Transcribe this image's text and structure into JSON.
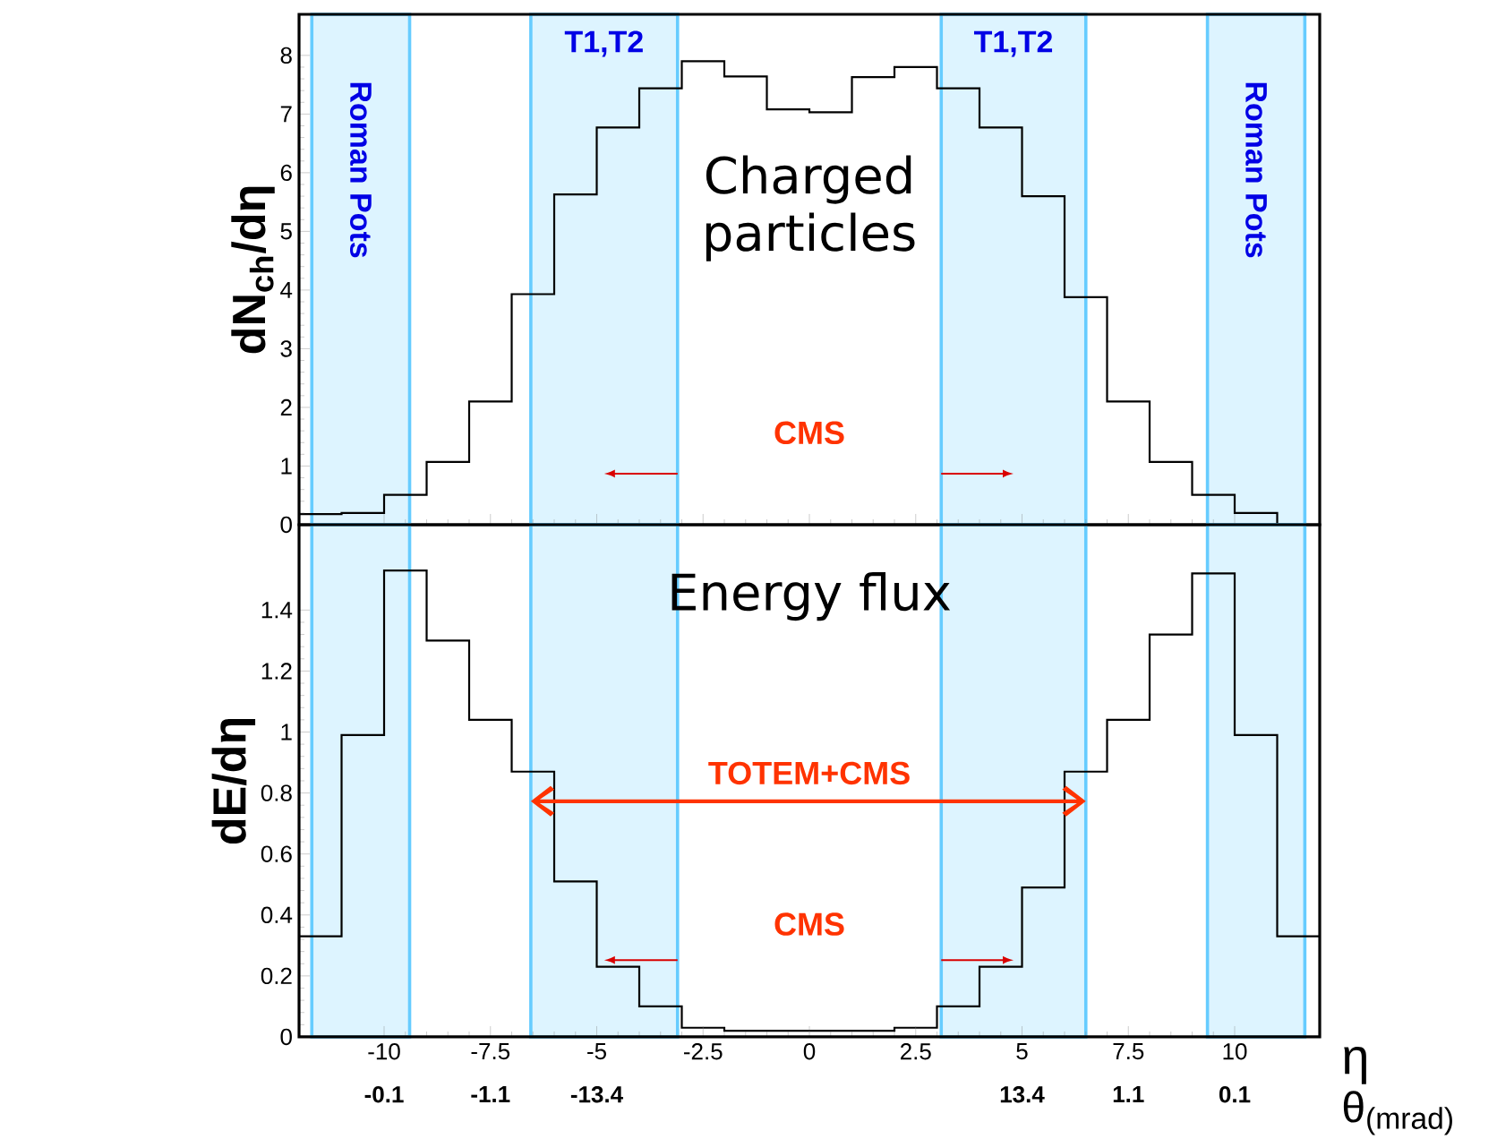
{
  "chart_data": [
    {
      "type": "histogram",
      "ylabel": "dN$_{ch}$/dη",
      "color": "#000000",
      "bins": [
        -12,
        -11,
        -10,
        -9,
        -8,
        -7,
        -6,
        -5,
        -4,
        -3,
        -2,
        -1,
        0,
        1,
        2,
        3,
        4,
        5,
        6,
        7,
        8,
        9,
        10,
        11,
        12
      ],
      "values": [
        0.18,
        0.2,
        0.51,
        1.07,
        2.1,
        3.93,
        5.63,
        6.77,
        7.44,
        7.9,
        7.64,
        7.08,
        7.03,
        7.63,
        7.8,
        7.44,
        6.77,
        5.6,
        3.88,
        2.1,
        1.07,
        0.51,
        0.2,
        0
      ],
      "xlim": [
        -12,
        12
      ],
      "xticks": [
        -10,
        -7.5,
        -5,
        -2.5,
        0,
        2.5,
        5,
        7.5,
        10
      ],
      "ylim": [
        0,
        8.7
      ],
      "yticks": [
        0,
        1,
        2,
        3,
        4,
        5,
        6,
        7,
        8
      ],
      "tick_labels": "y",
      "bands": [
        {
          "axis": "x",
          "from": -11.7,
          "to": -9.4,
          "label": "Roman Pots",
          "color": "#66ccff"
        },
        {
          "axis": "x",
          "from": -6.55,
          "to": -3.1,
          "label": "T1,T2",
          "color": "#66ccff"
        },
        {
          "axis": "x",
          "from": 3.1,
          "to": 6.5,
          "label": "T1,T2",
          "color": "#66ccff"
        },
        {
          "axis": "x",
          "from": 9.36,
          "to": 11.65,
          "label": "Roman Pots",
          "color": "#66ccff"
        }
      ],
      "annotations": [
        "Charged particles",
        "CMS"
      ]
    },
    {
      "type": "histogram",
      "ylabel": "dE/dη",
      "xlabel": "η",
      "color": "#000000",
      "bins": [
        -12,
        -11,
        -10,
        -9,
        -8,
        -7,
        -6,
        -5,
        -4,
        -3,
        -2,
        -1,
        0,
        1,
        2,
        3,
        4,
        5,
        6,
        7,
        8,
        9,
        10,
        11,
        12
      ],
      "values": [
        0.33,
        0.99,
        1.53,
        1.3,
        1.04,
        0.87,
        0.51,
        0.23,
        0.1,
        0.03,
        0.02,
        0.02,
        0.02,
        0.02,
        0.03,
        0.1,
        0.23,
        0.49,
        0.87,
        1.04,
        1.32,
        1.52,
        0.99,
        0.33
      ],
      "xlim": [
        -12,
        12
      ],
      "xticks": [
        -10,
        -7.5,
        -5,
        -2.5,
        0,
        2.5,
        5,
        7.5,
        10
      ],
      "ylim": [
        0,
        1.68
      ],
      "yticks": [
        0,
        0.2,
        0.4,
        0.6,
        0.8,
        1,
        1.2,
        1.4
      ],
      "bands": [
        {
          "axis": "x",
          "from": -11.7,
          "to": -9.4,
          "color": "#66ccff"
        },
        {
          "axis": "x",
          "from": -6.55,
          "to": -3.1,
          "color": "#66ccff"
        },
        {
          "axis": "x",
          "from": 3.1,
          "to": 6.5,
          "color": "#66ccff"
        },
        {
          "axis": "x",
          "from": 9.36,
          "to": 11.65,
          "color": "#66ccff"
        }
      ],
      "annotations": [
        "Energy flux",
        "TOTEM+CMS",
        "CMS",
        "θ$_{(mrad)}$",
        "-0.1",
        "-1.1",
        "-13.4",
        "13.4",
        "1.1",
        "0.1"
      ]
    }
  ]
}
